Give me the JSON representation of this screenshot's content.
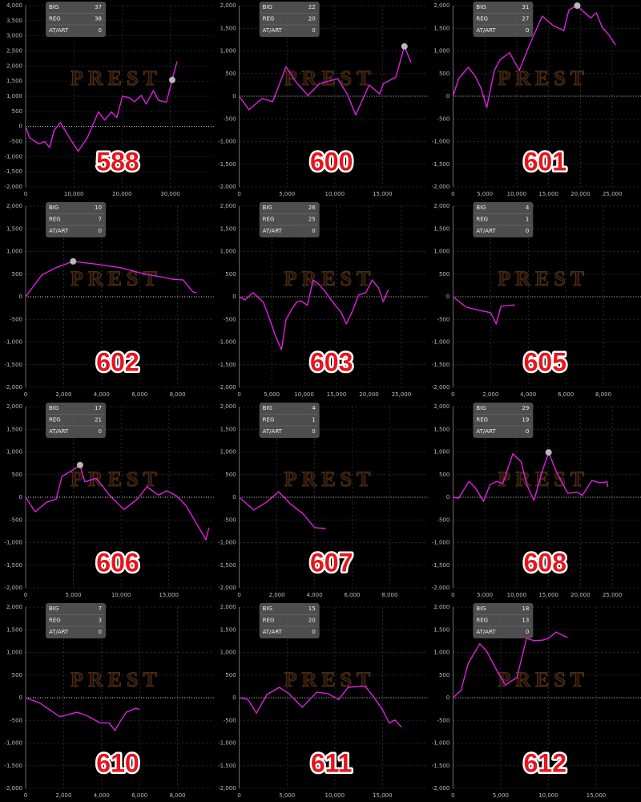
{
  "watermark": "PREST",
  "stat_labels": [
    "BIG",
    "REG",
    "AT/ART"
  ],
  "chart_data": [
    {
      "type": "line",
      "title": "588",
      "stats": [
        37,
        38,
        0
      ],
      "color": "#e020e0",
      "marker_index": 22,
      "x": [
        0,
        800,
        2700,
        3900,
        5000,
        5900,
        7200,
        8700,
        10900,
        12800,
        15100,
        16400,
        17800,
        18900,
        20100,
        21500,
        22600,
        24000,
        25000,
        26500,
        27500,
        29200,
        30400,
        31400
      ],
      "values": [
        0,
        -370,
        -580,
        -500,
        -700,
        -130,
        130,
        -270,
        -820,
        -370,
        480,
        210,
        480,
        290,
        1000,
        950,
        820,
        1030,
        740,
        1190,
        870,
        800,
        1540,
        2150
      ],
      "xlim": [
        0,
        39000
      ],
      "ylim": [
        -2000,
        4000
      ],
      "grid": true,
      "xticks": [
        0,
        {
          "value": 10000,
          "label": "10,000"
        },
        {
          "value": 20000,
          "label": "20,000"
        },
        {
          "value": 30000,
          "label": "30,000"
        }
      ],
      "yticks": [
        {
          "value": 4000,
          "label": "4,000"
        },
        {
          "value": 3500,
          "label": "3,500"
        },
        {
          "value": 3000,
          "label": "3,000"
        },
        {
          "value": 2500,
          "label": "2,500"
        },
        {
          "value": 2000,
          "label": "2,000"
        },
        {
          "value": 1500,
          "label": "1,500"
        },
        {
          "value": 1000,
          "label": "1,000"
        },
        500,
        0,
        -500,
        {
          "value": -1000,
          "label": "-1,000"
        },
        {
          "value": -1500,
          "label": "-1,500"
        },
        {
          "value": -2000,
          "label": "-2,000"
        }
      ]
    },
    {
      "type": "line",
      "title": "600",
      "stats": [
        22,
        20,
        0
      ],
      "color": "#e020e0",
      "marker_index": 16,
      "x": [
        0,
        1000,
        2400,
        3500,
        4900,
        6000,
        7200,
        8400,
        9700,
        10300,
        11300,
        12200,
        13600,
        14700,
        15100,
        16400,
        17300,
        18000
      ],
      "values": [
        0,
        -300,
        -50,
        -120,
        650,
        300,
        20,
        280,
        350,
        390,
        50,
        -410,
        250,
        50,
        280,
        420,
        1100,
        740
      ],
      "xlim": [
        0,
        19700
      ],
      "ylim": [
        -2000,
        2000
      ],
      "grid": true,
      "xticks": [
        0,
        {
          "value": 5000,
          "label": "5,000"
        },
        {
          "value": 10000,
          "label": "10,000"
        },
        {
          "value": 15000,
          "label": "15,000"
        }
      ],
      "yticks": [
        {
          "value": 2000,
          "label": "2,000"
        },
        {
          "value": 1500,
          "label": "1,500"
        },
        {
          "value": 1000,
          "label": "1,000"
        },
        500,
        0,
        -500,
        {
          "value": -1000,
          "label": "-1,000"
        },
        {
          "value": -1500,
          "label": "-1,500"
        },
        {
          "value": -2000,
          "label": "-2,000"
        }
      ]
    },
    {
      "type": "line",
      "title": "601",
      "stats": [
        31,
        27,
        0
      ],
      "color": "#e020e0",
      "marker_index": 15,
      "x": [
        0,
        900,
        2400,
        3500,
        4400,
        5300,
        6500,
        7400,
        8900,
        10400,
        12000,
        14000,
        15700,
        17400,
        18200,
        19500,
        20400,
        21600,
        22500,
        23400,
        24500,
        25500
      ],
      "values": [
        0,
        390,
        640,
        440,
        180,
        -250,
        570,
        810,
        960,
        570,
        1130,
        1770,
        1560,
        1450,
        1910,
        2000,
        1880,
        1730,
        1840,
        1520,
        1350,
        1130
      ],
      "xlim": [
        0,
        29500
      ],
      "ylim": [
        -2000,
        2000
      ],
      "grid": true,
      "xticks": [
        0,
        {
          "value": 5000,
          "label": "5,000"
        },
        {
          "value": 10000,
          "label": "10,000"
        },
        {
          "value": 15000,
          "label": "15,000"
        },
        {
          "value": 20000,
          "label": "20,000"
        },
        {
          "value": 25000,
          "label": "25,000"
        }
      ],
      "yticks": [
        {
          "value": 2000,
          "label": "2,000"
        },
        {
          "value": 1500,
          "label": "1,500"
        },
        {
          "value": 1000,
          "label": "1,000"
        },
        500,
        0,
        -500,
        {
          "value": -1000,
          "label": "-1,000"
        },
        {
          "value": -1500,
          "label": "-1,500"
        },
        {
          "value": -2000,
          "label": "-2,000"
        }
      ]
    },
    {
      "type": "line",
      "title": "602",
      "stats": [
        10,
        7,
        0
      ],
      "color": "#e020e0",
      "marker_index": 3,
      "x": [
        0,
        850,
        1600,
        2500,
        3700,
        5000,
        6300,
        7100,
        7700,
        8300,
        8800,
        9000
      ],
      "values": [
        0,
        480,
        640,
        780,
        720,
        640,
        500,
        440,
        390,
        370,
        110,
        90
      ],
      "xlim": [
        0,
        9900
      ],
      "ylim": [
        -2000,
        2000
      ],
      "grid": true,
      "xticks": [
        0,
        {
          "value": 2000,
          "label": "2,000"
        },
        {
          "value": 4000,
          "label": "4,000"
        },
        {
          "value": 6000,
          "label": "6,000"
        },
        {
          "value": 8000,
          "label": "8,000"
        }
      ],
      "yticks": [
        {
          "value": 2000,
          "label": "2,000"
        },
        {
          "value": 1500,
          "label": "1,500"
        },
        {
          "value": 1000,
          "label": "1,000"
        },
        500,
        0,
        -500,
        {
          "value": -1000,
          "label": "-1,000"
        },
        {
          "value": -1500,
          "label": "-1,500"
        },
        {
          "value": -2000,
          "label": "-2,000"
        }
      ]
    },
    {
      "type": "line",
      "title": "603",
      "stats": [
        26,
        25,
        0
      ],
      "color": "#e020e0",
      "x": [
        0,
        900,
        2100,
        3700,
        4600,
        5600,
        6500,
        7200,
        8100,
        8900,
        9500,
        10500,
        11400,
        12300,
        13200,
        14800,
        15700,
        16500,
        17500,
        18400,
        19500,
        20500,
        21500,
        22200,
        23000
      ],
      "values": [
        0,
        -70,
        90,
        -120,
        -460,
        -870,
        -1170,
        -510,
        -270,
        -110,
        -90,
        -190,
        370,
        270,
        120,
        -190,
        -340,
        -600,
        -300,
        40,
        90,
        370,
        190,
        -110,
        160
      ],
      "xlim": [
        0,
        29000
      ],
      "ylim": [
        -2000,
        2000
      ],
      "grid": true,
      "xticks": [
        0,
        {
          "value": 5000,
          "label": "5,000"
        },
        {
          "value": 10000,
          "label": "10,000"
        },
        {
          "value": 15000,
          "label": "15,000"
        },
        {
          "value": 20000,
          "label": "20,000"
        },
        {
          "value": 25000,
          "label": "25,000"
        }
      ],
      "yticks": [
        {
          "value": 2000,
          "label": "2,000"
        },
        {
          "value": 1500,
          "label": "1,500"
        },
        {
          "value": 1000,
          "label": "1,000"
        },
        500,
        0,
        -500,
        {
          "value": -1000,
          "label": "-1,000"
        },
        {
          "value": -1500,
          "label": "-1,500"
        },
        {
          "value": -2000,
          "label": "-2,000"
        }
      ]
    },
    {
      "type": "line",
      "title": "605",
      "stats": [
        4,
        1,
        0
      ],
      "color": "#e020e0",
      "x": [
        0,
        700,
        1400,
        2000,
        2300,
        2550,
        3300
      ],
      "values": [
        0,
        -230,
        -300,
        -350,
        -600,
        -210,
        -180
      ],
      "xlim": [
        0,
        10000
      ],
      "ylim": [
        -2000,
        2000
      ],
      "grid": true,
      "xticks": [
        0,
        {
          "value": 2000,
          "label": "2,000"
        },
        {
          "value": 4000,
          "label": "4,000"
        },
        {
          "value": 6000,
          "label": "6,000"
        },
        {
          "value": 8000,
          "label": "8,000"
        }
      ],
      "yticks": [
        {
          "value": 2000,
          "label": "2,000"
        },
        {
          "value": 1500,
          "label": "1,500"
        },
        {
          "value": 1000,
          "label": "1,000"
        },
        500,
        0,
        -500,
        {
          "value": -1000,
          "label": "-1,000"
        },
        {
          "value": -1500,
          "label": "-1,500"
        },
        {
          "value": -2000,
          "label": "-2,000"
        }
      ]
    },
    {
      "type": "line",
      "title": "606",
      "stats": [
        17,
        21,
        0
      ],
      "color": "#e020e0",
      "marker_index": 6,
      "x": [
        0,
        1000,
        2200,
        3200,
        3800,
        4700,
        5700,
        6200,
        7400,
        8800,
        10300,
        11700,
        12700,
        13900,
        14800,
        15800,
        16800,
        17900,
        18900,
        19200
      ],
      "values": [
        0,
        -320,
        -110,
        -40,
        460,
        570,
        710,
        340,
        420,
        40,
        -270,
        -40,
        230,
        50,
        140,
        30,
        -180,
        -580,
        -940,
        -670
      ],
      "xlim": [
        0,
        19700
      ],
      "ylim": [
        -2000,
        2000
      ],
      "grid": true,
      "xticks": [
        0,
        {
          "value": 5000,
          "label": "5,000"
        },
        {
          "value": 10000,
          "label": "10,000"
        },
        {
          "value": 15000,
          "label": "15,000"
        }
      ],
      "yticks": [
        {
          "value": 2000,
          "label": "2,000"
        },
        {
          "value": 1500,
          "label": "1,500"
        },
        {
          "value": 1000,
          "label": "1,000"
        },
        500,
        0,
        -500,
        {
          "value": -1000,
          "label": "-1,000"
        },
        {
          "value": -1500,
          "label": "-1,500"
        },
        {
          "value": -2000,
          "label": "-2,000"
        }
      ]
    },
    {
      "type": "line",
      "title": "607",
      "stats": [
        4,
        1,
        0
      ],
      "color": "#e020e0",
      "x": [
        0,
        760,
        1440,
        2100,
        2700,
        3400,
        4000,
        4600
      ],
      "values": [
        0,
        -280,
        -110,
        120,
        -140,
        -370,
        -670,
        -690
      ],
      "xlim": [
        0,
        10000
      ],
      "ylim": [
        -2000,
        2000
      ],
      "grid": true,
      "xticks": [
        0,
        {
          "value": 2000,
          "label": "2,000"
        },
        {
          "value": 4000,
          "label": "4,000"
        },
        {
          "value": 6000,
          "label": "6,000"
        },
        {
          "value": 8000,
          "label": "8,000"
        }
      ],
      "yticks": [
        {
          "value": 2000,
          "label": "2,000"
        },
        {
          "value": 1500,
          "label": "1,500"
        },
        {
          "value": 1000,
          "label": "1,000"
        },
        500,
        0,
        -500,
        {
          "value": -1000,
          "label": "-1,000"
        },
        {
          "value": -1500,
          "label": "-1,500"
        },
        {
          "value": -2000,
          "label": "-2,000"
        }
      ]
    },
    {
      "type": "line",
      "title": "608",
      "stats": [
        29,
        19,
        0
      ],
      "color": "#e020e0",
      "marker_index": 13,
      "x": [
        0,
        900,
        2500,
        3500,
        4800,
        5800,
        6900,
        7800,
        9400,
        10700,
        11600,
        12700,
        14000,
        15000,
        16200,
        18000,
        19500,
        20300,
        21800,
        23000,
        24200,
        24300
      ],
      "values": [
        0,
        -20,
        350,
        210,
        -90,
        280,
        350,
        300,
        960,
        780,
        270,
        -70,
        570,
        990,
        570,
        90,
        110,
        40,
        370,
        320,
        340,
        230
      ],
      "xlim": [
        0,
        29500
      ],
      "ylim": [
        -2000,
        2000
      ],
      "grid": true,
      "xticks": [
        0,
        {
          "value": 5000,
          "label": "5,000"
        },
        {
          "value": 10000,
          "label": "10,000"
        },
        {
          "value": 15000,
          "label": "15,000"
        },
        {
          "value": 20000,
          "label": "20,000"
        },
        {
          "value": 25000,
          "label": "25,000"
        }
      ],
      "yticks": [
        {
          "value": 2000,
          "label": "2,000"
        },
        {
          "value": 1500,
          "label": "1,500"
        },
        {
          "value": 1000,
          "label": "1,000"
        },
        500,
        0,
        -500,
        {
          "value": -1000,
          "label": "-1,000"
        },
        {
          "value": -1500,
          "label": "-1,500"
        },
        {
          "value": -2000,
          "label": "-2,000"
        }
      ]
    },
    {
      "type": "line",
      "title": "610",
      "stats": [
        7,
        3,
        0
      ],
      "color": "#e020e0",
      "x": [
        0,
        760,
        1800,
        2700,
        3200,
        3900,
        4400,
        4700,
        5000,
        5300,
        5800,
        6000
      ],
      "values": [
        0,
        -120,
        -420,
        -320,
        -390,
        -550,
        -560,
        -720,
        -510,
        -320,
        -230,
        -260
      ],
      "xlim": [
        0,
        9900
      ],
      "ylim": [
        -2000,
        2000
      ],
      "grid": true,
      "xticks": [
        0,
        {
          "value": 2000,
          "label": "2,000"
        },
        {
          "value": 4000,
          "label": "4,000"
        },
        {
          "value": 6000,
          "label": "6,000"
        },
        {
          "value": 8000,
          "label": "8,000"
        }
      ],
      "yticks": [
        {
          "value": 2000,
          "label": "2,000"
        },
        {
          "value": 1500,
          "label": "1,500"
        },
        {
          "value": 1000,
          "label": "1,000"
        },
        500,
        0,
        -500,
        {
          "value": -1000,
          "label": "-1,000"
        },
        {
          "value": -1500,
          "label": "-1,500"
        },
        {
          "value": -2000,
          "label": "-2,000"
        }
      ]
    },
    {
      "type": "line",
      "title": "611",
      "stats": [
        15,
        20,
        0
      ],
      "color": "#e020e0",
      "x": [
        0,
        900,
        1800,
        2900,
        4200,
        5200,
        6600,
        8100,
        9300,
        10400,
        11400,
        12600,
        13200,
        14000,
        15000,
        15700,
        16300,
        17000
      ],
      "values": [
        0,
        -40,
        -340,
        70,
        230,
        90,
        -210,
        120,
        90,
        -40,
        230,
        250,
        250,
        40,
        -260,
        -560,
        -490,
        -650
      ],
      "xlim": [
        0,
        19700
      ],
      "ylim": [
        -2000,
        2000
      ],
      "grid": true,
      "xticks": [
        0,
        {
          "value": 5000,
          "label": "5,000"
        },
        {
          "value": 10000,
          "label": "10,000"
        },
        {
          "value": 15000,
          "label": "15,000"
        }
      ],
      "yticks": [
        {
          "value": 2000,
          "label": "2,000"
        },
        {
          "value": 1500,
          "label": "1,500"
        },
        {
          "value": 1000,
          "label": "1,000"
        },
        500,
        0,
        -500,
        {
          "value": -1000,
          "label": "-1,000"
        },
        {
          "value": -1500,
          "label": "-1,500"
        },
        {
          "value": -2000,
          "label": "-2,000"
        }
      ]
    },
    {
      "type": "line",
      "title": "612",
      "stats": [
        18,
        13,
        0
      ],
      "color": "#e020e0",
      "x": [
        0,
        840,
        1600,
        2800,
        3500,
        4600,
        5500,
        6100,
        6700,
        7700,
        8500,
        9400,
        10000,
        10800,
        12000
      ],
      "values": [
        0,
        160,
        760,
        1190,
        1040,
        600,
        280,
        370,
        440,
        1310,
        1260,
        1270,
        1310,
        1450,
        1330
      ],
      "xlim": [
        0,
        19700
      ],
      "ylim": [
        -2000,
        2000
      ],
      "grid": true,
      "xticks": [
        0,
        {
          "value": 5000,
          "label": "5,000"
        },
        {
          "value": 10000,
          "label": "10,000"
        },
        {
          "value": 15000,
          "label": "15,000"
        }
      ],
      "yticks": [
        {
          "value": 2000,
          "label": "2,000"
        },
        {
          "value": 1500,
          "label": "1,500"
        },
        {
          "value": 1000,
          "label": "1,000"
        },
        500,
        0,
        -500,
        {
          "value": -1000,
          "label": "-1,000"
        },
        {
          "value": -1500,
          "label": "-1,500"
        },
        {
          "value": -2000,
          "label": "-2,000"
        }
      ]
    }
  ]
}
